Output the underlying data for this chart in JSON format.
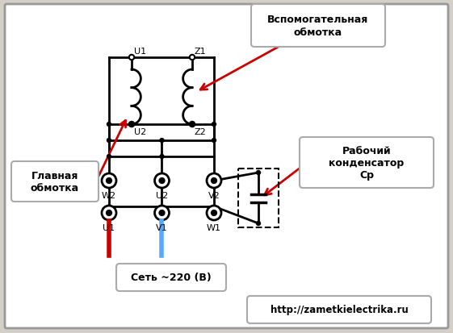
{
  "bg_color": "#d4d0c8",
  "white": "#ffffff",
  "line_color": "#000000",
  "red_color": "#cc0000",
  "blue_color": "#55aaff",
  "label_glavnaya": "Главная\nобмотка",
  "label_vspo": "Вспомогательная\nобмотка",
  "label_cap": "Рабочий\nконденсатор\nСр",
  "label_net": "Сеть ~220 (В)",
  "label_url": "http://zametkielectrika.ru",
  "lbl_U1": "U1",
  "lbl_Z1": "Z1",
  "lbl_U2": "U2",
  "lbl_Z2": "Z2",
  "lbl_W2": "W2",
  "lbl_U2t": "U2",
  "lbl_V2": "V2",
  "lbl_U1b": "U1",
  "lbl_V1": "V1",
  "lbl_W1": "W1"
}
